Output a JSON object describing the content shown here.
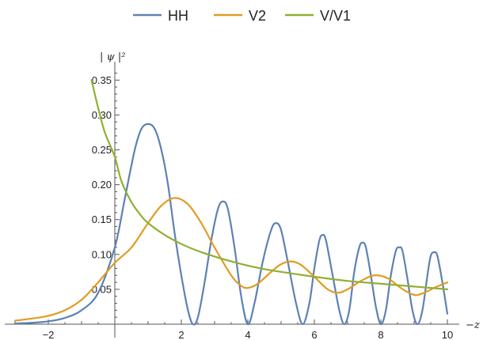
{
  "chart_data": {
    "type": "line",
    "title": "",
    "xlabel": "−z",
    "ylabel": "| ψ |²",
    "xlim": [
      -3,
      10
    ],
    "ylim": [
      0,
      0.36
    ],
    "grid": false,
    "legend_position": "top-center",
    "x_ticks_major": [
      {
        "value": -2,
        "label": "−2"
      },
      {
        "value": 2,
        "label": "2"
      },
      {
        "value": 4,
        "label": "4"
      },
      {
        "value": 6,
        "label": "6"
      },
      {
        "value": 8,
        "label": "8"
      },
      {
        "value": 10,
        "label": "10"
      }
    ],
    "y_ticks_major": [
      {
        "value": 0.05,
        "label": "0.05"
      },
      {
        "value": 0.1,
        "label": "0.10"
      },
      {
        "value": 0.15,
        "label": "0.15"
      },
      {
        "value": 0.2,
        "label": "0.20"
      },
      {
        "value": 0.25,
        "label": "0.25"
      },
      {
        "value": 0.3,
        "label": "0.30"
      },
      {
        "value": 0.35,
        "label": "0.35"
      }
    ],
    "series": [
      {
        "name": "HH",
        "color": "#5E81B5",
        "points": [
          [
            -3,
            0.001
          ],
          [
            -2.5,
            0.002
          ],
          [
            -2,
            0.004
          ],
          [
            -1.5,
            0.009
          ],
          [
            -1,
            0.02
          ],
          [
            -0.5,
            0.045
          ],
          [
            0,
            0.11
          ],
          [
            0.3,
            0.18
          ],
          [
            0.6,
            0.25
          ],
          [
            0.8,
            0.28
          ],
          [
            1,
            0.287
          ],
          [
            1.2,
            0.28
          ],
          [
            1.4,
            0.25
          ],
          [
            1.6,
            0.2
          ],
          [
            1.8,
            0.13
          ],
          [
            2,
            0.07
          ],
          [
            2.2,
            0.02
          ],
          [
            2.35,
            0.0
          ],
          [
            2.5,
            0.01
          ],
          [
            2.7,
            0.06
          ],
          [
            2.9,
            0.12
          ],
          [
            3.1,
            0.165
          ],
          [
            3.25,
            0.176
          ],
          [
            3.4,
            0.165
          ],
          [
            3.6,
            0.11
          ],
          [
            3.8,
            0.04
          ],
          [
            4.0,
            0.0
          ],
          [
            4.2,
            0.03
          ],
          [
            4.45,
            0.09
          ],
          [
            4.7,
            0.135
          ],
          [
            4.85,
            0.145
          ],
          [
            5.0,
            0.135
          ],
          [
            5.2,
            0.09
          ],
          [
            5.45,
            0.03
          ],
          [
            5.65,
            0.0
          ],
          [
            5.85,
            0.03
          ],
          [
            6.0,
            0.08
          ],
          [
            6.15,
            0.12
          ],
          [
            6.25,
            0.128
          ],
          [
            6.35,
            0.12
          ],
          [
            6.55,
            0.07
          ],
          [
            6.75,
            0.02
          ],
          [
            6.9,
            0.0
          ],
          [
            7.05,
            0.02
          ],
          [
            7.2,
            0.075
          ],
          [
            7.35,
            0.11
          ],
          [
            7.45,
            0.117
          ],
          [
            7.55,
            0.11
          ],
          [
            7.7,
            0.07
          ],
          [
            7.85,
            0.025
          ],
          [
            8.0,
            0.0
          ],
          [
            8.15,
            0.02
          ],
          [
            8.3,
            0.07
          ],
          [
            8.45,
            0.105
          ],
          [
            8.55,
            0.11
          ],
          [
            8.65,
            0.105
          ],
          [
            8.8,
            0.065
          ],
          [
            8.95,
            0.02
          ],
          [
            9.1,
            0.0
          ],
          [
            9.25,
            0.02
          ],
          [
            9.4,
            0.07
          ],
          [
            9.5,
            0.098
          ],
          [
            9.6,
            0.103
          ],
          [
            9.7,
            0.098
          ],
          [
            9.85,
            0.06
          ],
          [
            10,
            0.015
          ]
        ]
      },
      {
        "name": "V2",
        "color": "#E19C24",
        "points": [
          [
            -3,
            0.005
          ],
          [
            -2.5,
            0.008
          ],
          [
            -2,
            0.012
          ],
          [
            -1.5,
            0.02
          ],
          [
            -1,
            0.035
          ],
          [
            -0.5,
            0.06
          ],
          [
            0,
            0.088
          ],
          [
            0.5,
            0.11
          ],
          [
            1,
            0.145
          ],
          [
            1.4,
            0.17
          ],
          [
            1.8,
            0.181
          ],
          [
            2.2,
            0.172
          ],
          [
            2.6,
            0.145
          ],
          [
            3,
            0.11
          ],
          [
            3.5,
            0.07
          ],
          [
            3.8,
            0.055
          ],
          [
            4.0,
            0.052
          ],
          [
            4.3,
            0.058
          ],
          [
            4.7,
            0.075
          ],
          [
            5.0,
            0.086
          ],
          [
            5.3,
            0.09
          ],
          [
            5.6,
            0.085
          ],
          [
            6.0,
            0.068
          ],
          [
            6.4,
            0.05
          ],
          [
            6.7,
            0.045
          ],
          [
            7.0,
            0.05
          ],
          [
            7.4,
            0.062
          ],
          [
            7.8,
            0.07
          ],
          [
            8.2,
            0.066
          ],
          [
            8.6,
            0.052
          ],
          [
            9.0,
            0.042
          ],
          [
            9.3,
            0.045
          ],
          [
            9.6,
            0.052
          ],
          [
            10,
            0.06
          ]
        ]
      },
      {
        "name": "V/V1",
        "color": "#8FB032",
        "points": [
          [
            -0.7,
            0.35
          ],
          [
            -0.5,
            0.31
          ],
          [
            -0.3,
            0.275
          ],
          [
            0,
            0.24
          ],
          [
            0.2,
            0.205
          ],
          [
            0.5,
            0.175
          ],
          [
            0.8,
            0.155
          ],
          [
            1,
            0.145
          ],
          [
            1.5,
            0.128
          ],
          [
            2,
            0.115
          ],
          [
            2.5,
            0.105
          ],
          [
            3,
            0.097
          ],
          [
            3.5,
            0.09
          ],
          [
            4,
            0.084
          ],
          [
            4.5,
            0.079
          ],
          [
            5,
            0.075
          ],
          [
            6,
            0.068
          ],
          [
            7,
            0.062
          ],
          [
            8,
            0.058
          ],
          [
            9,
            0.054
          ],
          [
            10,
            0.05
          ]
        ]
      }
    ]
  }
}
